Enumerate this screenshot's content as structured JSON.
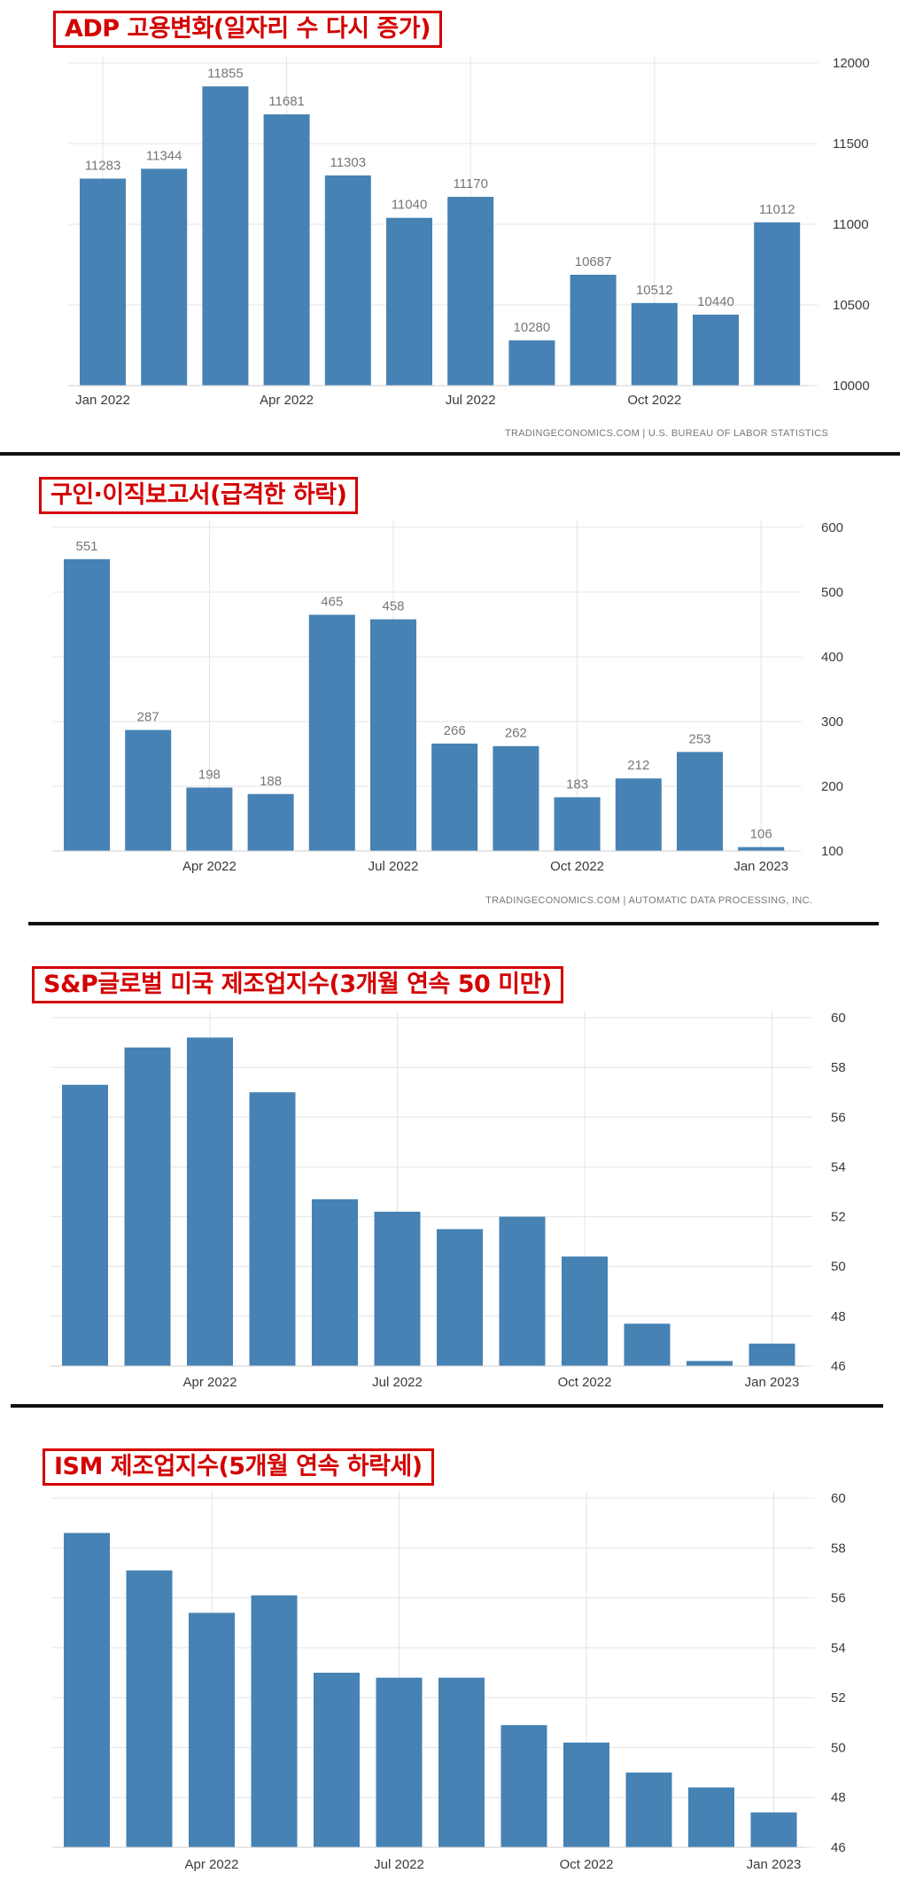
{
  "accent_color": "#d40000",
  "bar_color": "#4682b4",
  "chart_data": [
    {
      "type": "bar",
      "title": "ADP 고용변화(일자리 수 다시 증가)",
      "x_ticks": [
        "Jan 2022",
        "Apr 2022",
        "Jul 2022",
        "Oct 2022"
      ],
      "values": [
        11283,
        11344,
        11855,
        11681,
        11303,
        11040,
        11170,
        10280,
        10687,
        10512,
        10440,
        11012
      ],
      "data_labels": [
        "11283",
        "11344",
        "11855",
        "11681",
        "11303",
        "11040",
        "11170",
        "10280",
        "10687",
        "10512",
        "10440",
        "11012"
      ],
      "y_ticks": [
        "12000",
        "11500",
        "11000",
        "10500",
        "10000"
      ],
      "ylim": [
        10000,
        12000
      ],
      "grid": true,
      "source": "TRADINGECONOMICS.COM  |  U.S. BUREAU OF LABOR STATISTICS"
    },
    {
      "type": "bar",
      "title": "구인·이직보고서(급격한 하락)",
      "x_ticks": [
        "Apr 2022",
        "Jul 2022",
        "Oct 2022",
        "Jan 2023"
      ],
      "values": [
        551,
        287,
        198,
        188,
        465,
        458,
        266,
        262,
        183,
        212,
        253,
        106
      ],
      "data_labels": [
        "551",
        "287",
        "198",
        "188",
        "465",
        "458",
        "266",
        "262",
        "183",
        "212",
        "253",
        "106"
      ],
      "y_ticks": [
        "600",
        "500",
        "400",
        "300",
        "200",
        "100"
      ],
      "ylim": [
        100,
        600
      ],
      "grid": true,
      "source": "TRADINGECONOMICS.COM  |  AUTOMATIC DATA PROCESSING, INC."
    },
    {
      "type": "bar",
      "title": "S&P글로벌 미국 제조업지수(3개월 연속 50 미만)",
      "x_ticks": [
        "Apr 2022",
        "Jul 2022",
        "Oct 2022",
        "Jan 2023"
      ],
      "values": [
        57.3,
        58.8,
        59.2,
        57.0,
        52.7,
        52.2,
        51.5,
        52.0,
        50.4,
        47.7,
        46.2,
        46.9
      ],
      "y_ticks": [
        "60",
        "58",
        "56",
        "54",
        "52",
        "50",
        "48",
        "46"
      ],
      "ylim": [
        46,
        60
      ],
      "grid": true
    },
    {
      "type": "bar",
      "title": "ISM 제조업지수(5개월 연속 하락세)",
      "x_ticks": [
        "Apr 2022",
        "Jul 2022",
        "Oct 2022",
        "Jan 2023"
      ],
      "values": [
        58.6,
        57.1,
        55.4,
        56.1,
        53.0,
        52.8,
        52.8,
        50.9,
        50.2,
        49.0,
        48.4,
        47.4
      ],
      "y_ticks": [
        "60",
        "58",
        "56",
        "54",
        "52",
        "50",
        "48",
        "46"
      ],
      "ylim": [
        46,
        60
      ],
      "grid": true
    }
  ]
}
